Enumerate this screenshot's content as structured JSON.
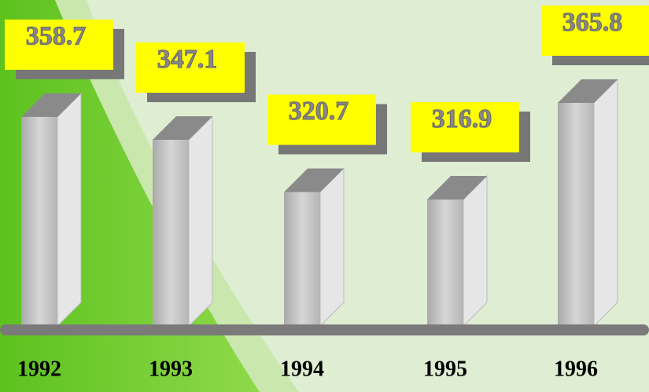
{
  "chart_data": {
    "type": "bar",
    "categories": [
      "1992",
      "1993",
      "1994",
      "1995",
      "1996"
    ],
    "values": [
      358.7,
      347.1,
      320.7,
      316.9,
      365.8
    ],
    "color": "#c8c8c8",
    "label_color": "#ffff00"
  }
}
